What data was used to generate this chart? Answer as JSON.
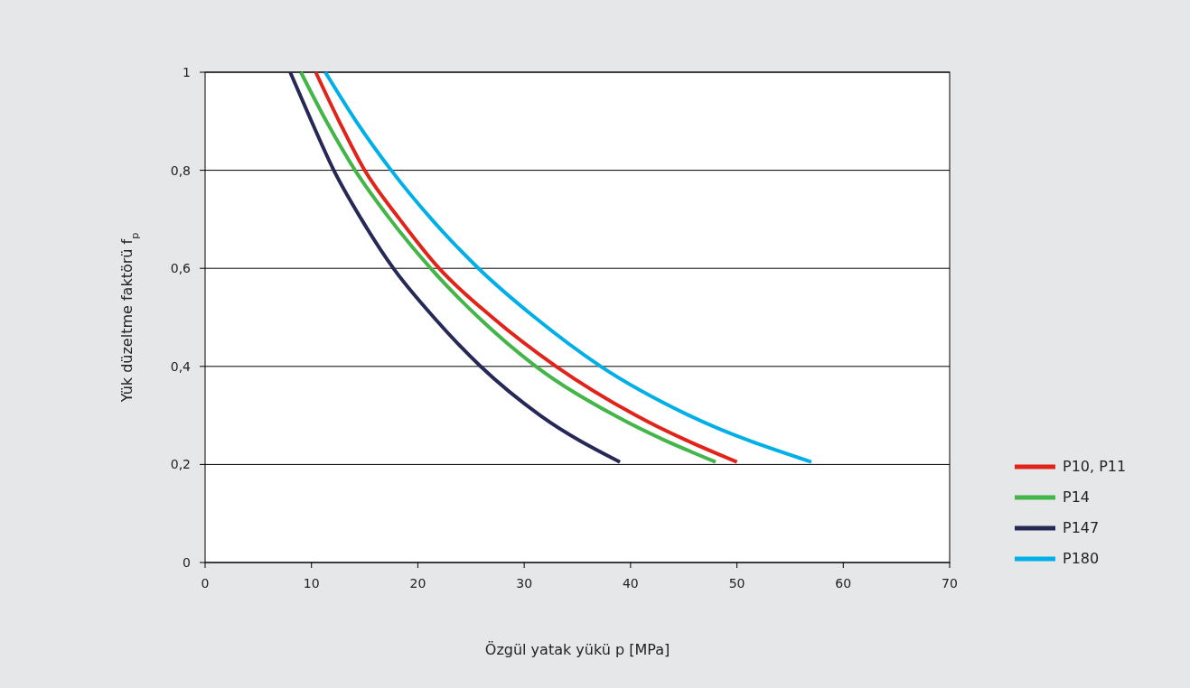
{
  "chart_data": {
    "type": "line",
    "xlabel": "Özgül yatak yükü p [MPa]",
    "ylabel": "Yük düzeltme faktörü f$_{p}$",
    "xlim": [
      0,
      70
    ],
    "xticks": [
      0,
      10,
      20,
      30,
      40,
      50,
      60,
      70
    ],
    "ylim": [
      0,
      1
    ],
    "yticks": [
      0,
      {
        "value": 0.2,
        "label": "0,2"
      },
      {
        "value": 0.4,
        "label": "0,4"
      },
      {
        "value": 0.6,
        "label": "0,6"
      },
      {
        "value": 0.8,
        "label": "0,8"
      },
      1
    ],
    "grid": "y",
    "legend": "right",
    "marker": "none",
    "line_style": "solid",
    "series": [
      {
        "name": "P10, P11",
        "color": "#e2231a",
        "x": [
          10.4,
          12.6,
          15,
          18.3,
          22,
          27,
          33,
          40.5,
          50
        ],
        "values": [
          1,
          0.9,
          0.8,
          0.7,
          0.6,
          0.5,
          0.4,
          0.3,
          0.205
        ]
      },
      {
        "name": "P14",
        "color": "#43b549",
        "x": [
          9,
          11.4,
          14.1,
          17.4,
          21.2,
          25.7,
          31.1,
          38.5,
          48
        ],
        "values": [
          1,
          0.9,
          0.8,
          0.7,
          0.6,
          0.5,
          0.4,
          0.3,
          0.205
        ]
      },
      {
        "name": "P147",
        "color": "#262856",
        "x": [
          8,
          10,
          12.1,
          14.7,
          17.7,
          21.5,
          25.9,
          31.5,
          39
        ],
        "values": [
          1,
          0.9,
          0.8,
          0.7,
          0.6,
          0.5,
          0.4,
          0.3,
          0.205
        ]
      },
      {
        "name": "P180",
        "color": "#00aee8",
        "x": [
          11.3,
          14.2,
          17.5,
          21.3,
          25.7,
          31,
          37.2,
          45.5,
          57
        ],
        "values": [
          1,
          0.9,
          0.8,
          0.7,
          0.6,
          0.5,
          0.4,
          0.3,
          0.205
        ]
      }
    ]
  }
}
